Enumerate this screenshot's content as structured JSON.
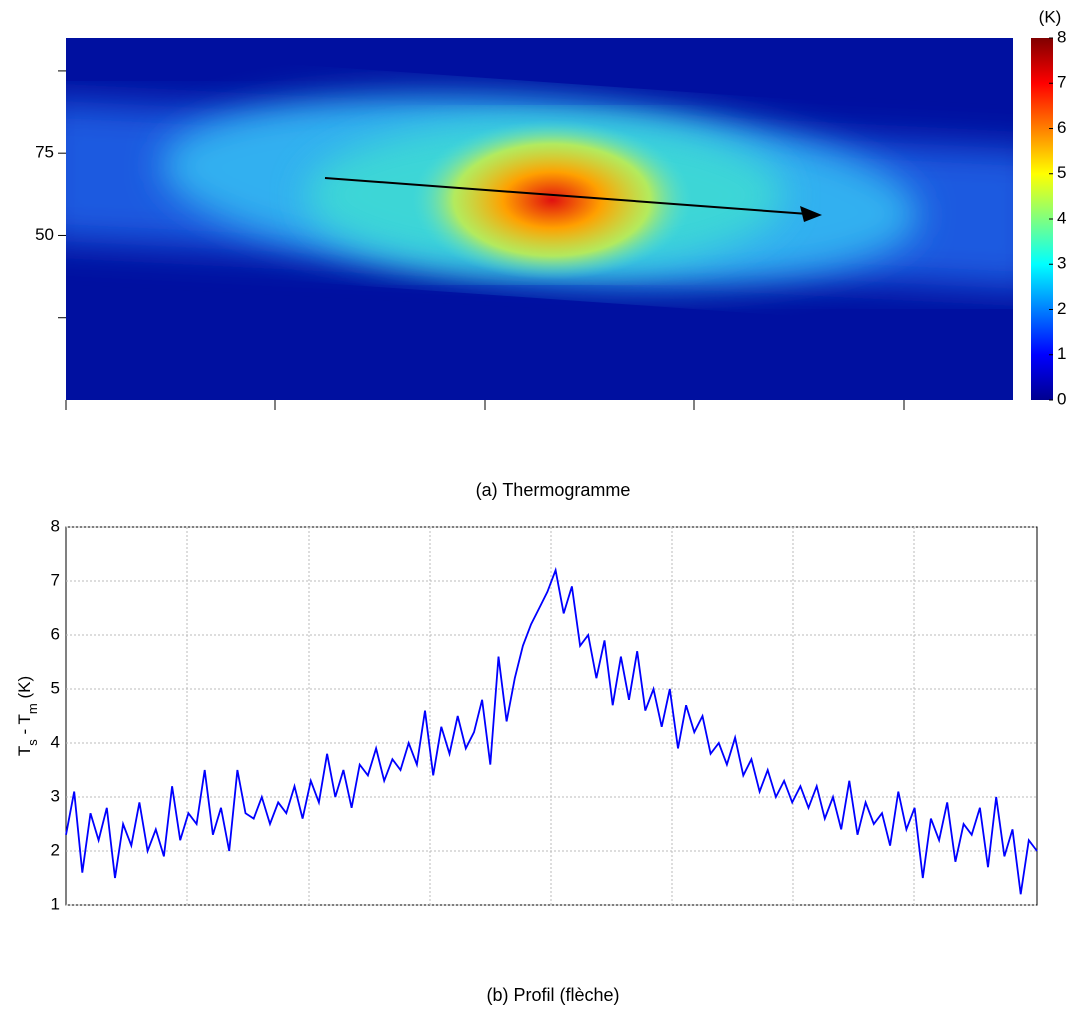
{
  "chart_data": [
    {
      "type": "heatmap",
      "caption": "(a) Thermogramme",
      "ylim": [
        0,
        110
      ],
      "yticks": [
        {
          "value": 25,
          "label": null
        },
        50,
        75,
        {
          "value": 100,
          "label": null
        }
      ],
      "colorbar": {
        "label": "(K)",
        "lim": [
          0,
          8
        ],
        "ticks": [
          0,
          1,
          2,
          3,
          4,
          5,
          6,
          7,
          8
        ]
      }
    },
    {
      "type": "line",
      "caption": "(b) Profil (flèche)",
      "ylabel_parts": [
        "T",
        "s",
        " - T",
        "m",
        " (K)"
      ],
      "ylim": [
        1,
        8
      ],
      "yticks": [
        1,
        2,
        3,
        4,
        5,
        6,
        7,
        8
      ],
      "grid": true,
      "color": "#0000ff",
      "values": [
        2.3,
        3.1,
        1.6,
        2.7,
        2.2,
        2.8,
        1.5,
        2.5,
        2.1,
        2.9,
        2.0,
        2.4,
        1.9,
        3.2,
        2.2,
        2.7,
        2.5,
        3.5,
        2.3,
        2.8,
        2.0,
        3.5,
        2.7,
        2.6,
        3.0,
        2.5,
        2.9,
        2.7,
        3.2,
        2.6,
        3.3,
        2.9,
        3.8,
        3.0,
        3.5,
        2.8,
        3.6,
        3.4,
        3.9,
        3.3,
        3.7,
        3.5,
        4.0,
        3.6,
        4.6,
        3.4,
        4.3,
        3.8,
        4.5,
        3.9,
        4.2,
        4.8,
        3.6,
        5.6,
        4.4,
        5.2,
        5.8,
        6.2,
        6.5,
        6.8,
        7.2,
        6.4,
        6.9,
        5.8,
        6.0,
        5.2,
        5.9,
        4.7,
        5.6,
        4.8,
        5.7,
        4.6,
        5.0,
        4.3,
        5.0,
        3.9,
        4.7,
        4.2,
        4.5,
        3.8,
        4.0,
        3.6,
        4.1,
        3.4,
        3.7,
        3.1,
        3.5,
        3.0,
        3.3,
        2.9,
        3.2,
        2.8,
        3.2,
        2.6,
        3.0,
        2.4,
        3.3,
        2.3,
        2.9,
        2.5,
        2.7,
        2.1,
        3.1,
        2.4,
        2.8,
        1.5,
        2.6,
        2.2,
        2.9,
        1.8,
        2.5,
        2.3,
        2.8,
        1.7,
        3.0,
        1.9,
        2.4,
        1.2,
        2.2,
        2.0
      ]
    }
  ]
}
